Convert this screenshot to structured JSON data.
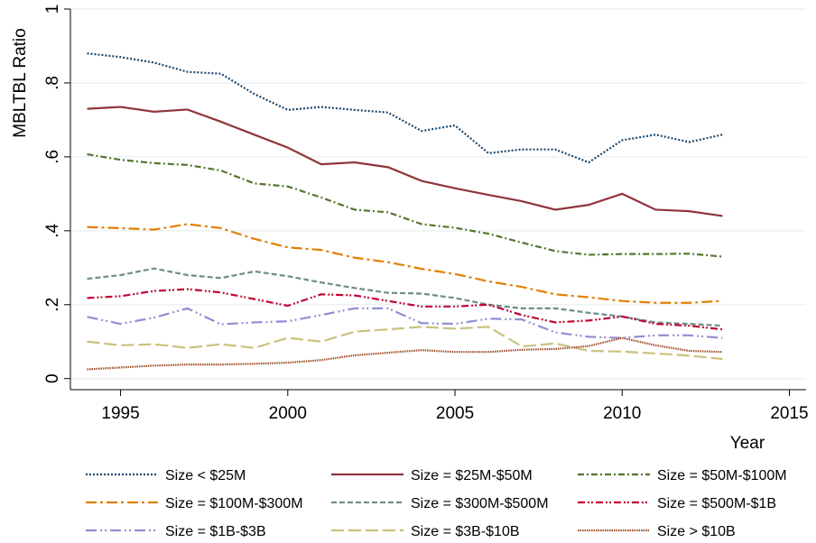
{
  "chart_data": {
    "type": "line",
    "y_label": "MBLTBL Ratio",
    "x_label": "Year",
    "x": [
      1994,
      1995,
      1996,
      1997,
      1998,
      1999,
      2000,
      2001,
      2002,
      2003,
      2004,
      2005,
      2006,
      2007,
      2008,
      2009,
      2010,
      2011,
      2012,
      2013
    ],
    "xlim": [
      1993.5,
      2015.5
    ],
    "xticks": [
      1995,
      2000,
      2005,
      2010,
      2015
    ],
    "ylim": [
      -0.03,
      1
    ],
    "yticks": [
      0,
      {
        "value": 0.2,
        "label": ".2"
      },
      {
        "value": 0.4,
        "label": ".4"
      },
      {
        "value": 0.6,
        "label": ".6"
      },
      {
        "value": 0.8,
        "label": ".8"
      },
      1
    ],
    "grid": true,
    "series": [
      {
        "name": "Size < $25M",
        "color": "#1a476f",
        "dash": "2 2",
        "values": [
          0.88,
          0.87,
          0.855,
          0.83,
          0.825,
          0.77,
          0.727,
          0.735,
          0.727,
          0.72,
          0.67,
          0.685,
          0.61,
          0.62,
          0.62,
          0.585,
          0.645,
          0.66,
          0.64,
          0.66
        ]
      },
      {
        "name": "Size = $25M-$50M",
        "color": "#90353b",
        "dash": "none",
        "values": [
          0.73,
          0.735,
          0.722,
          0.728,
          0.695,
          0.66,
          0.625,
          0.58,
          0.585,
          0.572,
          0.535,
          0.515,
          0.497,
          0.48,
          0.457,
          0.47,
          0.5,
          0.457,
          0.453,
          0.44
        ]
      },
      {
        "name": "Size = $50M-$100M",
        "color": "#55752f",
        "dash": "7 3 2 3",
        "values": [
          0.607,
          0.592,
          0.583,
          0.578,
          0.563,
          0.528,
          0.52,
          0.49,
          0.457,
          0.45,
          0.418,
          0.408,
          0.392,
          0.368,
          0.345,
          0.335,
          0.337,
          0.337,
          0.338,
          0.33
        ]
      },
      {
        "name": "Size = $100M-$300M",
        "color": "#e37e00",
        "dash": "12 4 3 4",
        "values": [
          0.41,
          0.407,
          0.403,
          0.418,
          0.407,
          0.378,
          0.355,
          0.348,
          0.327,
          0.315,
          0.297,
          0.283,
          0.263,
          0.248,
          0.228,
          0.22,
          0.21,
          0.205,
          0.205,
          0.21
        ]
      },
      {
        "name": "Size = $300M-$500M",
        "color": "#6e8e84",
        "dash": "6 3",
        "values": [
          0.27,
          0.28,
          0.298,
          0.28,
          0.272,
          0.29,
          0.277,
          0.26,
          0.245,
          0.232,
          0.23,
          0.218,
          0.2,
          0.19,
          0.19,
          0.178,
          0.168,
          0.152,
          0.148,
          0.143
        ]
      },
      {
        "name": "Size = $500M-$1B",
        "color": "#c10534",
        "dash": "8 3 2 2 2 3",
        "values": [
          0.218,
          0.223,
          0.237,
          0.242,
          0.233,
          0.215,
          0.197,
          0.228,
          0.225,
          0.21,
          0.195,
          0.195,
          0.2,
          0.172,
          0.152,
          0.157,
          0.168,
          0.148,
          0.143,
          0.133
        ]
      },
      {
        "name": "Size = $1B-$3B",
        "color": "#938dd2",
        "dash": "12 4 2 3 2 4",
        "values": [
          0.167,
          0.148,
          0.165,
          0.19,
          0.147,
          0.152,
          0.155,
          0.172,
          0.19,
          0.19,
          0.15,
          0.148,
          0.162,
          0.16,
          0.125,
          0.113,
          0.11,
          0.117,
          0.117,
          0.11
        ]
      },
      {
        "name": "Size = $3B-$10B",
        "color": "#cac27e",
        "dash": "14 5",
        "values": [
          0.1,
          0.09,
          0.093,
          0.083,
          0.093,
          0.083,
          0.11,
          0.1,
          0.127,
          0.133,
          0.14,
          0.135,
          0.14,
          0.087,
          0.095,
          0.075,
          0.073,
          0.068,
          0.062,
          0.053
        ]
      },
      {
        "name": "Size > $10B",
        "color": "#a0522d",
        "dash": "1.5 1",
        "values": [
          0.025,
          0.03,
          0.035,
          0.038,
          0.038,
          0.04,
          0.043,
          0.05,
          0.063,
          0.07,
          0.077,
          0.072,
          0.072,
          0.078,
          0.08,
          0.088,
          0.11,
          0.09,
          0.075,
          0.072
        ]
      }
    ]
  }
}
